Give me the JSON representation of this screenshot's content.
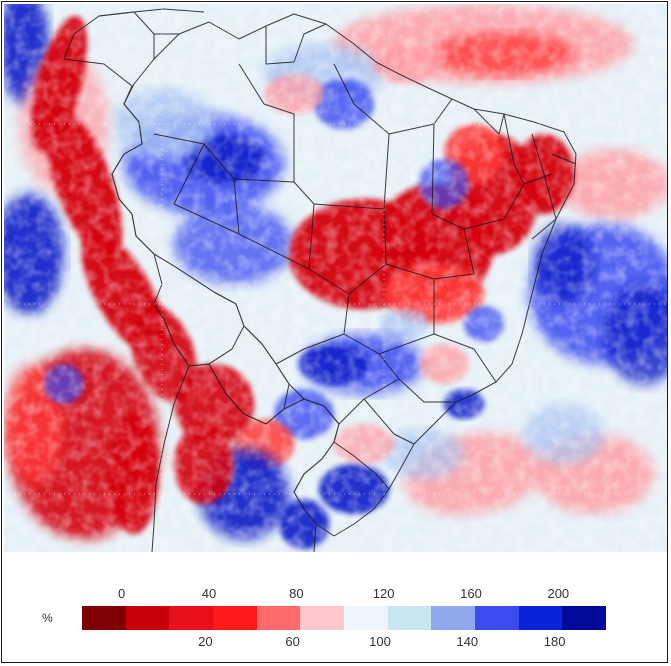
{
  "legend": {
    "unit": "%",
    "ticks_top": [
      "0",
      "40",
      "80",
      "120",
      "160",
      "200"
    ],
    "ticks_bottom": [
      "20",
      "60",
      "100",
      "140",
      "180"
    ],
    "colors": [
      "#7f0000",
      "#c8000a",
      "#e8101a",
      "#ff1a1a",
      "#ff6b6b",
      "#ffc8cc",
      "#eef6fb",
      "#c8e6ef",
      "#8fa8ee",
      "#3a4cf0",
      "#0a22d8",
      "#000a9a"
    ]
  },
  "map": {
    "ocean_tones": [
      "#c8e6ef",
      "#eef6fb",
      "#ffc8cc",
      "#ff6b6b"
    ],
    "anomaly_colors": {
      "dry_strong": "#d4000c",
      "dry_mid": "#ff3b3b",
      "dry_light": "#ff9aa0",
      "near_normal": "#eef6fb",
      "wet_light": "#a9c3f3",
      "wet_mid": "#3a4cf0",
      "wet_strong": "#0a1fc8"
    }
  }
}
